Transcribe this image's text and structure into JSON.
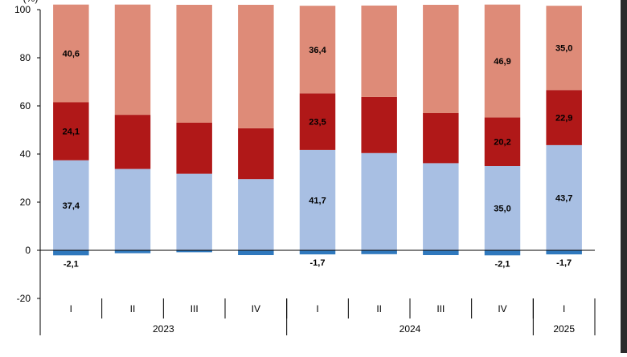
{
  "chart_data": {
    "type": "bar",
    "stacked": true,
    "title": "",
    "xlabel": "",
    "ylabel": "",
    "yunit_label": "(%)",
    "ylim": [
      -20,
      100
    ],
    "yticks": [
      "-20",
      "0",
      "20",
      "40",
      "60",
      "80",
      "100"
    ],
    "grid": false,
    "categories": [
      "I",
      "II",
      "III",
      "IV",
      "I",
      "II",
      "III",
      "IV",
      "I"
    ],
    "groups": [
      {
        "label": "2023",
        "count": 4
      },
      {
        "label": "2024",
        "count": 4
      },
      {
        "label": "2025",
        "count": 1
      }
    ],
    "series": [
      {
        "color": "#2f78bd",
        "values": [
          -2.1,
          -1.2,
          -0.8,
          -2.0,
          -1.7,
          -1.6,
          -2.0,
          -2.1,
          -1.7
        ],
        "labels": [
          "-2,1",
          "",
          "",
          "",
          "-1,7",
          "",
          "",
          "-2,1",
          "-1,7"
        ]
      },
      {
        "color": "#a8bfe3",
        "values": [
          37.4,
          33.8,
          31.8,
          29.6,
          41.7,
          40.4,
          36.2,
          35.0,
          43.7
        ],
        "labels": [
          "37,4",
          "",
          "",
          "",
          "41,7",
          "",
          "",
          "35,0",
          "43,7"
        ]
      },
      {
        "color": "#b01818",
        "values": [
          24.1,
          22.5,
          21.2,
          21.1,
          23.5,
          23.3,
          20.8,
          20.2,
          22.9
        ],
        "labels": [
          "24,1",
          "",
          "",
          "",
          "23,5",
          "",
          "",
          "20,2",
          "22,9"
        ]
      },
      {
        "color": "#de8b78",
        "values": [
          40.6,
          45.8,
          49.0,
          51.3,
          36.4,
          38.0,
          45.0,
          46.9,
          35.0
        ],
        "labels": [
          "40,6",
          "",
          "",
          "",
          "36,4",
          "",
          "",
          "46,9",
          "35,0"
        ]
      }
    ]
  }
}
